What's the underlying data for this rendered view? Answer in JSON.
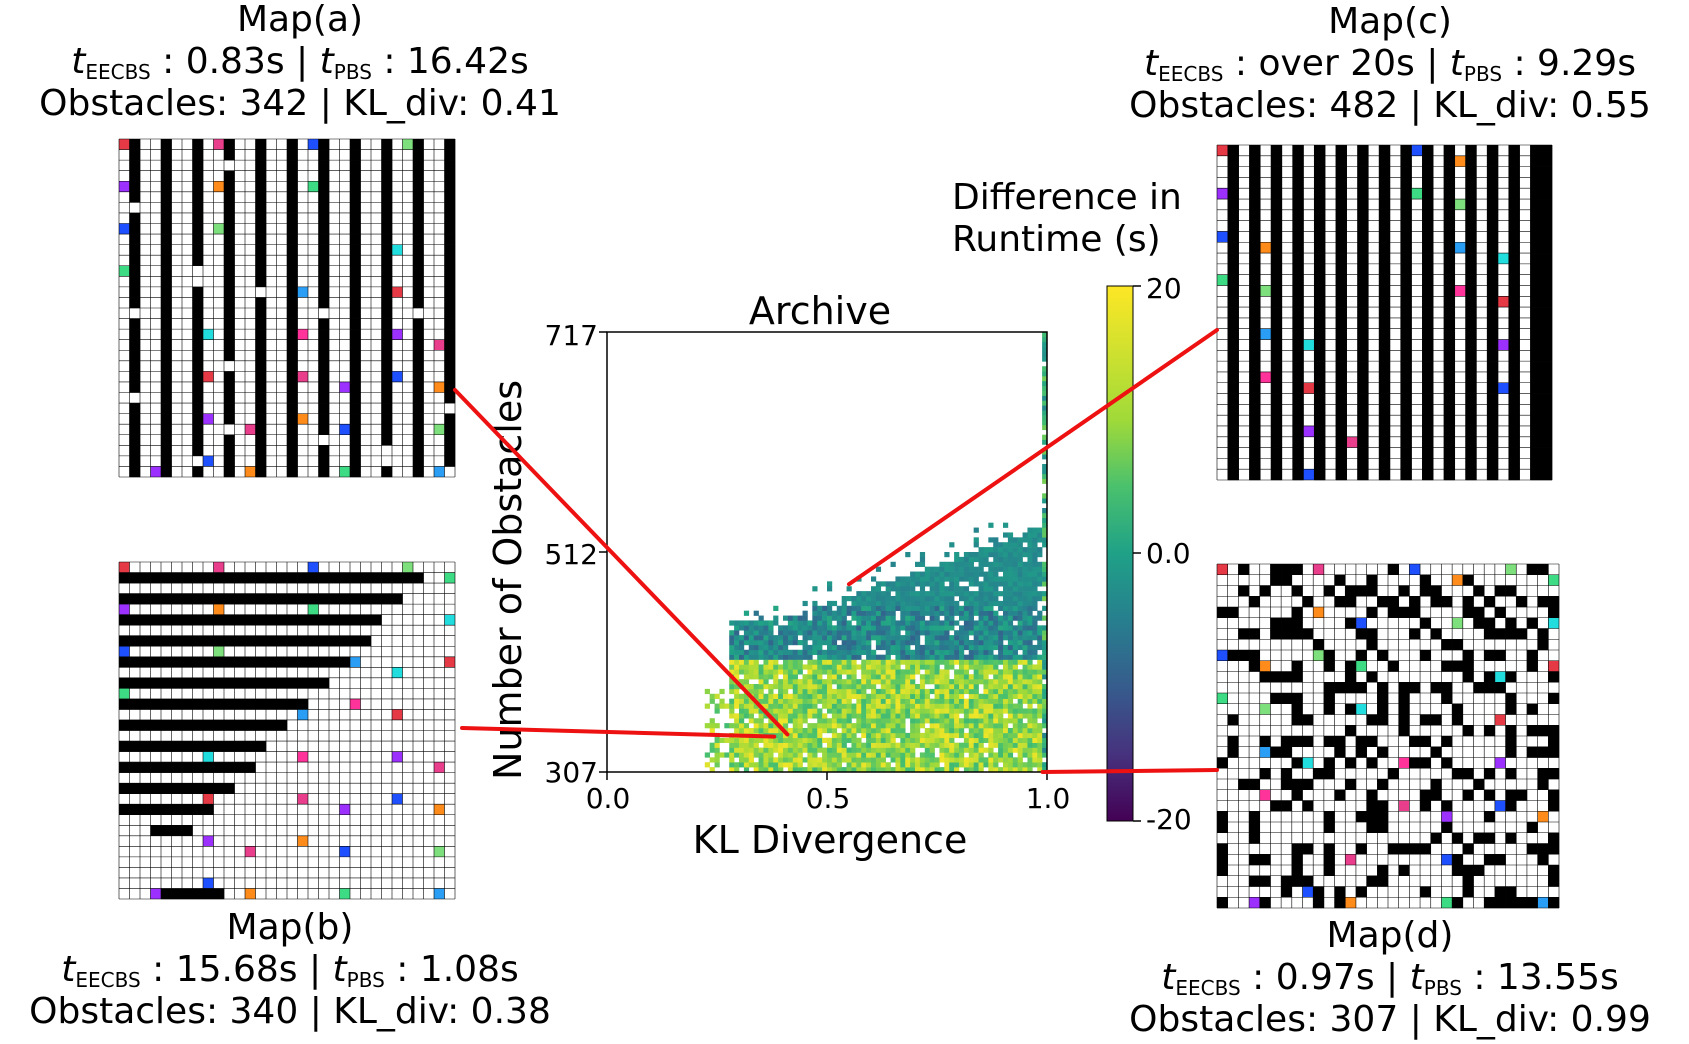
{
  "chart_data": {
    "type": "heatmap",
    "title": "Archive",
    "xlabel": "KL Divergence",
    "ylabel": "Number of Obstacles",
    "xlim": [
      0.0,
      1.0
    ],
    "ylim": [
      307,
      717
    ],
    "xticks": [
      "0.0",
      "0.5",
      "1.0"
    ],
    "yticks": [
      "307",
      "512",
      "717"
    ],
    "colorbar": {
      "label_line1": "Difference in",
      "label_line2": "Runtime (s)",
      "range": [
        -20,
        20
      ],
      "ticks": [
        "20",
        "0.0",
        "-20"
      ],
      "colormap": "viridis"
    },
    "highlighted_points": [
      {
        "name": "Map(a)",
        "kl_div": 0.41,
        "obstacles": 342
      },
      {
        "name": "Map(b)",
        "kl_div": 0.38,
        "obstacles": 340
      },
      {
        "name": "Map(c)",
        "kl_div": 0.55,
        "obstacles": 482
      },
      {
        "name": "Map(d)",
        "kl_div": 0.99,
        "obstacles": 307
      }
    ]
  },
  "maps": {
    "a": {
      "title": "Map(a)",
      "eecbs_value": " : 0.83s | ",
      "pbs_value": " : 16.42s",
      "stats": "Obstacles: 342 | KL_div: 0.41"
    },
    "b": {
      "title": "Map(b)",
      "eecbs_value": " : 15.68s | ",
      "pbs_value": " : 1.08s",
      "stats": "Obstacles: 340 | KL_div: 0.38"
    },
    "c": {
      "title": "Map(c)",
      "eecbs_value": " : over 20s | ",
      "pbs_value": " : 9.29s",
      "stats": "Obstacles: 482 | KL_div: 0.55"
    },
    "d": {
      "title": "Map(d)",
      "eecbs_value": " : 0.97s | ",
      "pbs_value": " : 13.55s",
      "stats": "Obstacles: 307 | KL_div: 0.99"
    }
  },
  "labels": {
    "t_symbol": "t",
    "eecbs_sub": "EECBS",
    "pbs_sub": "PBS"
  },
  "colors": {
    "connector": "#ee1111",
    "grid_line": "#000000",
    "obstacle": "#000000"
  }
}
